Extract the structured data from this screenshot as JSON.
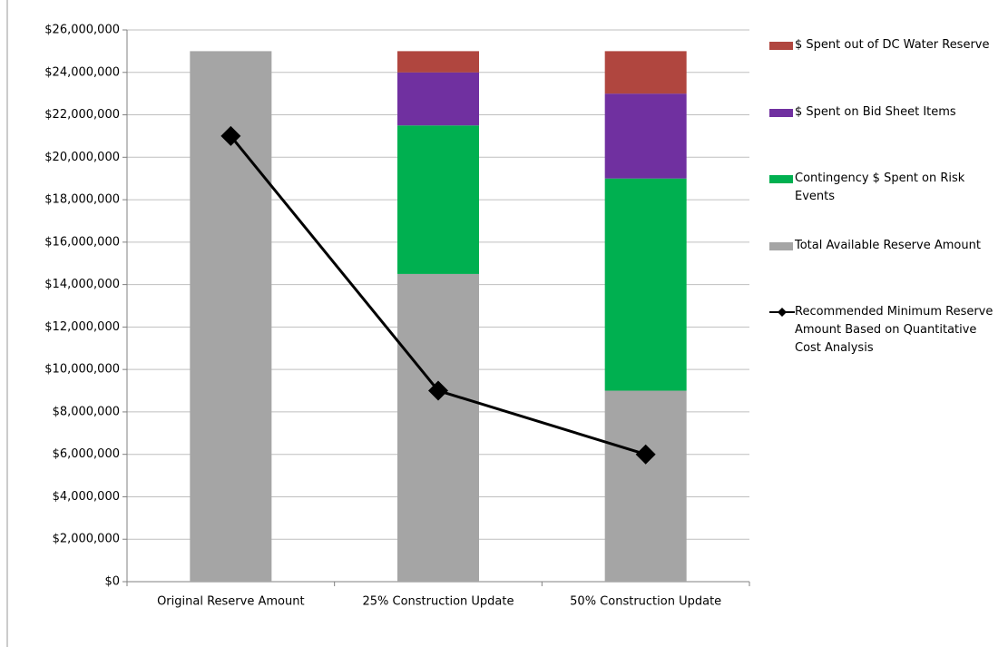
{
  "chart_data": {
    "type": "bar",
    "stacked": true,
    "categories": [
      "Original Reserve Amount",
      "25% Construction Update",
      "50% Construction Update"
    ],
    "series": [
      {
        "name": "Total Available Reserve Amount",
        "color": "#a5a5a5",
        "values": [
          25000000,
          14500000,
          9000000
        ]
      },
      {
        "name": "Contingency $ Spent on Risk Events",
        "color": "#00b050",
        "values": [
          0,
          7000000,
          10000000
        ]
      },
      {
        "name": "$ Spent on Bid Sheet Items",
        "color": "#7030a0",
        "values": [
          0,
          2500000,
          4000000
        ]
      },
      {
        "name": "$ Spent out of DC Water Reserve",
        "color": "#b0463f",
        "values": [
          0,
          1000000,
          2000000
        ]
      },
      {
        "name": "Recommended Minimum Reserve Amount Based on Quantitative Cost Analysis",
        "type": "line",
        "color": "#000000",
        "values": [
          21000000,
          9000000,
          6000000
        ]
      }
    ],
    "ylim": [
      0,
      26000000
    ],
    "yticks": [
      {
        "value": 0,
        "label": "$0"
      },
      {
        "value": 2000000,
        "label": "$2,000,000"
      },
      {
        "value": 4000000,
        "label": "$4,000,000"
      },
      {
        "value": 6000000,
        "label": "$6,000,000"
      },
      {
        "value": 8000000,
        "label": "$8,000,000"
      },
      {
        "value": 10000000,
        "label": "$10,000,000"
      },
      {
        "value": 12000000,
        "label": "$12,000,000"
      },
      {
        "value": 14000000,
        "label": "$14,000,000"
      },
      {
        "value": 16000000,
        "label": "$16,000,000"
      },
      {
        "value": 18000000,
        "label": "$18,000,000"
      },
      {
        "value": 20000000,
        "label": "$20,000,000"
      },
      {
        "value": 22000000,
        "label": "$22,000,000"
      },
      {
        "value": 24000000,
        "label": "$24,000,000"
      },
      {
        "value": 26000000,
        "label": "$26,000,000"
      }
    ],
    "grid": true,
    "legend": "right"
  }
}
